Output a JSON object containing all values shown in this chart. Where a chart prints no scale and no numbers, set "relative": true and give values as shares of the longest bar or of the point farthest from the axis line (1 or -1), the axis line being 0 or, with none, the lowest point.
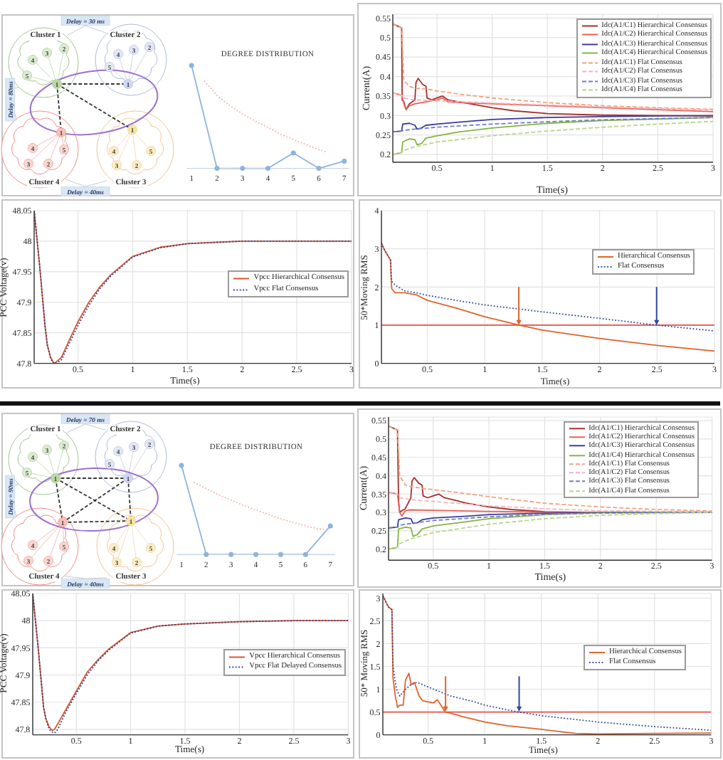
{
  "chart_data": [
    {
      "type": "other",
      "annotations": [
        "Cluster 1",
        "Cluster 2",
        "Cluster 3",
        "Cluster 4",
        "Delay = 30 ms",
        "Delay = 80ms",
        "Delay = 40ms",
        "1",
        "2",
        "3",
        "4",
        "5",
        "1",
        "2",
        "3",
        "4",
        "5",
        "1",
        "2",
        "3",
        "4",
        "5",
        "1",
        "2",
        "3",
        "4",
        "5"
      ]
    },
    {
      "type": "line",
      "title": "DEGREE DISTRIBUTION",
      "relative": true,
      "x": [
        1,
        2,
        3,
        4,
        5,
        6,
        7
      ],
      "xlim": [
        0.8,
        7.2
      ],
      "xticks": [
        1,
        2,
        3,
        4,
        5,
        6,
        7
      ],
      "marker": "circle",
      "series": [
        {
          "color": "#8db3de",
          "values": [
            1,
            0,
            0,
            0,
            0.15,
            0,
            0.07
          ]
        },
        {
          "x": [
            1.5,
            2,
            2.5,
            3,
            3.5,
            4,
            4.5,
            5,
            5.5,
            6,
            6.3
          ],
          "values": [
            0.85,
            0.71,
            0.61,
            0.53,
            0.46,
            0.4,
            0.33,
            0.28,
            0.23,
            0.18,
            0.16
          ],
          "color": "#f3b5ae",
          "line_style": "dotted",
          "marker": "none"
        }
      ]
    },
    {
      "type": "line",
      "xlabel": "Time(s)",
      "ylabel": "Current(A)",
      "xlim": [
        0.1,
        3
      ],
      "xticks": [
        0.5,
        1,
        1.5,
        2,
        2.5,
        3
      ],
      "ylim": [
        0.18,
        0.56
      ],
      "yticks": [
        0.2,
        0.25,
        0.3,
        0.35,
        0.4,
        0.45,
        0.5,
        0.55
      ],
      "grid": true,
      "legend": "top right",
      "line_style": "solid",
      "series": [
        {
          "name": "Idc(A1/C1) Hierarchical Consensus",
          "color": "#a5302b",
          "x": [
            0.1,
            0.18,
            0.185,
            0.2,
            0.22,
            0.25,
            0.3,
            0.31,
            0.33,
            0.37,
            0.4,
            0.41,
            0.45,
            0.5,
            0.55,
            0.6,
            0.7,
            0.8,
            1,
            1.2,
            1.5,
            2,
            2.5,
            3
          ],
          "values": [
            0.535,
            0.525,
            0.34,
            0.335,
            0.315,
            0.33,
            0.34,
            0.385,
            0.395,
            0.38,
            0.375,
            0.345,
            0.34,
            0.345,
            0.35,
            0.34,
            0.335,
            0.33,
            0.32,
            0.312,
            0.305,
            0.301,
            0.3,
            0.299
          ]
        },
        {
          "name": "Idc(A1/C2) Hierarchical Consensus",
          "color": "#ee5f58",
          "x": [
            0.1,
            0.18,
            0.2,
            0.22,
            0.25,
            0.3,
            0.4,
            0.5,
            0.55,
            0.6,
            0.8,
            1,
            1.5,
            2,
            2.5,
            3
          ],
          "values": [
            0.358,
            0.352,
            0.33,
            0.315,
            0.325,
            0.33,
            0.335,
            0.34,
            0.345,
            0.335,
            0.332,
            0.33,
            0.325,
            0.32,
            0.315,
            0.31
          ]
        },
        {
          "name": "Idc(A1/C3) Hierarchical Consensus",
          "color": "#3b3b9e",
          "x": [
            0.1,
            0.18,
            0.19,
            0.25,
            0.3,
            0.32,
            0.36,
            0.4,
            0.5,
            0.7,
            1,
            1.5,
            2,
            2.5,
            3
          ],
          "values": [
            0.258,
            0.26,
            0.278,
            0.28,
            0.275,
            0.265,
            0.268,
            0.275,
            0.278,
            0.283,
            0.29,
            0.295,
            0.297,
            0.299,
            0.3
          ]
        },
        {
          "name": "Idc(A1/C4) Hierarchical Consensus",
          "color": "#86b443",
          "x": [
            0.1,
            0.18,
            0.19,
            0.25,
            0.3,
            0.32,
            0.36,
            0.4,
            0.5,
            0.7,
            1,
            1.5,
            2,
            2.5,
            3
          ],
          "values": [
            0.2,
            0.205,
            0.232,
            0.24,
            0.238,
            0.225,
            0.228,
            0.242,
            0.248,
            0.258,
            0.268,
            0.28,
            0.287,
            0.291,
            0.295
          ]
        },
        {
          "name": "Idc(A1/C1) Flat Consensus",
          "color": "#f2a27e",
          "line_style": "dashed",
          "x": [
            0.1,
            0.18,
            0.2,
            0.25,
            0.3,
            0.4,
            0.5,
            0.7,
            1,
            1.5,
            2,
            2.5,
            3
          ],
          "values": [
            0.535,
            0.525,
            0.39,
            0.375,
            0.37,
            0.368,
            0.363,
            0.355,
            0.345,
            0.333,
            0.325,
            0.32,
            0.316
          ]
        },
        {
          "name": "Idc(A1/C2) Flat Consensus",
          "color": "#f6b3c0",
          "line_style": "dashed",
          "x": [
            0.1,
            0.18,
            0.2,
            0.3,
            0.5,
            1,
            1.5,
            2,
            2.5,
            3
          ],
          "values": [
            0.358,
            0.352,
            0.345,
            0.34,
            0.338,
            0.332,
            0.327,
            0.322,
            0.318,
            0.314
          ]
        },
        {
          "name": "Idc(A1/C3) Flat Consensus",
          "color": "#6f7fc4",
          "line_style": "dashed",
          "x": [
            0.1,
            0.18,
            0.2,
            0.3,
            0.5,
            1,
            1.5,
            2,
            2.5,
            3
          ],
          "values": [
            0.258,
            0.26,
            0.262,
            0.265,
            0.27,
            0.278,
            0.284,
            0.289,
            0.292,
            0.295
          ]
        },
        {
          "name": "Idc(A1/C4) Flat Consensus",
          "color": "#b5d68c",
          "line_style": "dashed",
          "x": [
            0.1,
            0.18,
            0.2,
            0.3,
            0.5,
            1,
            1.5,
            2,
            2.5,
            3
          ],
          "values": [
            0.2,
            0.205,
            0.21,
            0.22,
            0.232,
            0.248,
            0.26,
            0.27,
            0.278,
            0.285
          ]
        }
      ]
    },
    {
      "type": "line",
      "xlabel": "Time(s)",
      "ylabel": "PCC Voltage(v)",
      "xlim": [
        0.1,
        3
      ],
      "xticks": [
        0.5,
        1,
        1.5,
        2,
        2.5,
        3
      ],
      "ylim": [
        47.8,
        48.05
      ],
      "yticks": [
        47.8,
        47.85,
        47.9,
        47.95,
        48,
        48.05
      ],
      "grid": true,
      "legend": "right",
      "line_style": "solid",
      "series": [
        {
          "name": "Vpcc Hierarchical Consensus",
          "color": "#d8572f",
          "x": [
            0.1,
            0.15,
            0.2,
            0.22,
            0.25,
            0.28,
            0.3,
            0.35,
            0.4,
            0.5,
            0.6,
            0.7,
            0.8,
            1,
            1.25,
            1.5,
            2,
            2.5,
            3
          ],
          "values": [
            48.05,
            47.96,
            47.86,
            47.83,
            47.81,
            47.8,
            47.802,
            47.81,
            47.83,
            47.868,
            47.9,
            47.925,
            47.945,
            47.975,
            47.99,
            47.996,
            48,
            48,
            48
          ]
        },
        {
          "name": "Vpcc Flat Consensus",
          "color": "#2b3b8f",
          "line_style": "dotted",
          "x": [
            0.1,
            0.15,
            0.2,
            0.22,
            0.25,
            0.28,
            0.3,
            0.35,
            0.4,
            0.5,
            0.6,
            0.7,
            0.8,
            1,
            1.25,
            1.5,
            2,
            2.5,
            3
          ],
          "values": [
            48.05,
            47.96,
            47.86,
            47.83,
            47.808,
            47.8,
            47.8,
            47.806,
            47.825,
            47.862,
            47.895,
            47.922,
            47.943,
            47.974,
            47.989,
            47.996,
            48,
            48,
            48
          ]
        }
      ]
    },
    {
      "type": "line",
      "xlabel": "Time(s)",
      "ylabel": "50*Moving RMS",
      "xlim": [
        0.1,
        3
      ],
      "xticks": [
        0.5,
        1,
        1.5,
        2,
        2.5,
        3
      ],
      "ylim": [
        0,
        4
      ],
      "yticks": [
        0,
        1,
        2,
        3,
        4
      ],
      "grid": true,
      "legend": "top right",
      "line_style": "solid",
      "ref_lines": [
        {
          "axis": "y",
          "value": 1,
          "color": "#e8504a"
        }
      ],
      "series": [
        {
          "name": "Hierarchical Consensus",
          "color": "#e0632c",
          "x": [
            0.1,
            0.13,
            0.18,
            0.185,
            0.19,
            0.22,
            0.3,
            0.4,
            0.5,
            0.75,
            1,
            1.3,
            1.5,
            2,
            2.5,
            3
          ],
          "values": [
            3.15,
            2.95,
            2.7,
            2.2,
            1.95,
            1.85,
            1.85,
            1.8,
            1.65,
            1.45,
            1.22,
            1,
            0.87,
            0.65,
            0.47,
            0.32
          ]
        },
        {
          "name": "Flat Consensus",
          "color": "#2d4aa0",
          "line_style": "dotted",
          "x": [
            0.1,
            0.13,
            0.18,
            0.185,
            0.19,
            0.22,
            0.3,
            0.4,
            0.5,
            0.75,
            1,
            1.5,
            2,
            2.5,
            3
          ],
          "values": [
            3.15,
            2.95,
            2.7,
            2.3,
            2.15,
            2.05,
            1.9,
            1.85,
            1.78,
            1.65,
            1.53,
            1.35,
            1.18,
            1,
            0.85
          ]
        }
      ]
    },
    {
      "type": "other",
      "annotations": [
        "Cluster 1",
        "Cluster 2",
        "Cluster 3",
        "Cluster 4",
        "Delay = 70 ms",
        "Delay = 90ms",
        "Delay = 40ms",
        "1",
        "2",
        "3",
        "4",
        "5",
        "1",
        "2",
        "3",
        "4",
        "5",
        "1",
        "2",
        "3",
        "4",
        "5",
        "1",
        "2",
        "3",
        "4",
        "5"
      ]
    },
    {
      "type": "line",
      "title": "DEGREE DISTRIBUTION",
      "relative": true,
      "x": [
        1,
        2,
        3,
        4,
        5,
        6,
        7
      ],
      "xlim": [
        0.8,
        7.2
      ],
      "xticks": [
        1,
        2,
        3,
        4,
        5,
        6,
        7
      ],
      "marker": "circle",
      "series": [
        {
          "color": "#8db3de",
          "values": [
            1,
            0,
            0,
            0,
            0,
            0,
            0.32
          ]
        },
        {
          "x": [
            1.5,
            2,
            2.5,
            3,
            3.5,
            4,
            4.5,
            5,
            5.5,
            6,
            6.5,
            6.9
          ],
          "values": [
            0.81,
            0.74,
            0.67,
            0.61,
            0.55,
            0.5,
            0.45,
            0.4,
            0.36,
            0.32,
            0.29,
            0.28
          ],
          "color": "#f3b5ae",
          "line_style": "dotted",
          "marker": "none"
        }
      ]
    },
    {
      "type": "line",
      "xlabel": "Time(s)",
      "ylabel": "Current(A)",
      "xlim": [
        0.1,
        3
      ],
      "xticks": [
        0.5,
        1,
        1.5,
        2,
        2.5,
        3
      ],
      "ylim": [
        0.17,
        0.56
      ],
      "yticks": [
        0.2,
        0.25,
        0.3,
        0.35,
        0.4,
        0.45,
        0.5,
        0.55
      ],
      "grid": true,
      "legend": "top right",
      "line_style": "solid",
      "series": [
        {
          "name": "Idc(A1/C1) Hierarchical Consensus",
          "color": "#a5302b",
          "x": [
            0.1,
            0.18,
            0.19,
            0.2,
            0.22,
            0.25,
            0.3,
            0.31,
            0.33,
            0.37,
            0.4,
            0.41,
            0.45,
            0.5,
            0.55,
            0.6,
            0.7,
            0.8,
            1,
            1.2,
            1.5,
            2,
            2.5,
            3
          ],
          "values": [
            0.535,
            0.525,
            0.33,
            0.3,
            0.305,
            0.31,
            0.34,
            0.385,
            0.395,
            0.38,
            0.375,
            0.345,
            0.34,
            0.345,
            0.35,
            0.34,
            0.333,
            0.325,
            0.315,
            0.308,
            0.302,
            0.3,
            0.3,
            0.3
          ]
        },
        {
          "name": "Idc(A1/C2) Hierarchical Consensus",
          "color": "#ee5f58",
          "x": [
            0.1,
            0.18,
            0.2,
            0.22,
            0.25,
            0.3,
            0.5,
            1,
            1.5,
            2,
            3
          ],
          "values": [
            0.355,
            0.35,
            0.3,
            0.29,
            0.305,
            0.307,
            0.306,
            0.303,
            0.301,
            0.3,
            0.3
          ]
        },
        {
          "name": "Idc(A1/C3) Hierarchical Consensus",
          "color": "#3b3b9e",
          "x": [
            0.1,
            0.18,
            0.19,
            0.25,
            0.3,
            0.32,
            0.36,
            0.4,
            0.5,
            0.8,
            1,
            1.5,
            2,
            3
          ],
          "values": [
            0.258,
            0.26,
            0.28,
            0.285,
            0.283,
            0.27,
            0.272,
            0.28,
            0.285,
            0.29,
            0.294,
            0.298,
            0.3,
            0.3
          ]
        },
        {
          "name": "Idc(A1/C4) Hierarchical Consensus",
          "color": "#86b443",
          "x": [
            0.1,
            0.18,
            0.19,
            0.25,
            0.3,
            0.32,
            0.36,
            0.4,
            0.5,
            0.8,
            1,
            1.5,
            2,
            3
          ],
          "values": [
            0.2,
            0.205,
            0.255,
            0.26,
            0.258,
            0.235,
            0.24,
            0.255,
            0.263,
            0.275,
            0.283,
            0.294,
            0.299,
            0.3
          ]
        },
        {
          "name": "Idc(A1/C1) Flat Consensus",
          "color": "#f2a27e",
          "line_style": "dashed",
          "x": [
            0.1,
            0.18,
            0.2,
            0.25,
            0.3,
            0.5,
            0.7,
            1,
            1.5,
            2,
            2.5,
            3
          ],
          "values": [
            0.535,
            0.525,
            0.4,
            0.375,
            0.37,
            0.362,
            0.355,
            0.343,
            0.325,
            0.315,
            0.308,
            0.304
          ]
        },
        {
          "name": "Idc(A1/C2) Flat Consensus",
          "color": "#f6b3c0",
          "line_style": "dashed",
          "x": [
            0.1,
            0.18,
            0.2,
            0.3,
            0.5,
            1,
            1.5,
            2,
            2.5,
            3
          ],
          "values": [
            0.355,
            0.35,
            0.34,
            0.335,
            0.33,
            0.318,
            0.31,
            0.305,
            0.303,
            0.302
          ]
        },
        {
          "name": "Idc(A1/C3) Flat Consensus",
          "color": "#6f7fc4",
          "line_style": "dashed",
          "x": [
            0.1,
            0.18,
            0.2,
            0.3,
            0.5,
            1,
            1.5,
            2,
            2.5,
            3
          ],
          "values": [
            0.258,
            0.26,
            0.265,
            0.27,
            0.278,
            0.288,
            0.295,
            0.298,
            0.3,
            0.3
          ]
        },
        {
          "name": "Idc(A1/C4) Flat Consensus",
          "color": "#b5d68c",
          "line_style": "dashed",
          "x": [
            0.1,
            0.18,
            0.2,
            0.3,
            0.5,
            1,
            1.5,
            2,
            2.5,
            3
          ],
          "values": [
            0.2,
            0.205,
            0.215,
            0.228,
            0.245,
            0.268,
            0.283,
            0.292,
            0.297,
            0.3
          ]
        }
      ]
    },
    {
      "type": "line",
      "xlabel": "Time(s)",
      "ylabel": "PCC Voltage(v)",
      "xlim": [
        0.1,
        3
      ],
      "xticks": [
        0.5,
        1,
        1.5,
        2,
        2.5,
        3
      ],
      "ylim": [
        47.79,
        48.05
      ],
      "yticks": [
        47.8,
        47.85,
        47.9,
        47.95,
        48,
        48.05
      ],
      "grid": true,
      "legend": "right",
      "line_style": "solid",
      "series": [
        {
          "name": "Vpcc Hierarchical Consensus",
          "color": "#d8572f",
          "x": [
            0.1,
            0.15,
            0.2,
            0.22,
            0.25,
            0.28,
            0.3,
            0.33,
            0.4,
            0.5,
            0.6,
            0.7,
            0.8,
            1,
            1.25,
            1.5,
            2,
            2.5,
            3
          ],
          "values": [
            48.05,
            47.95,
            47.84,
            47.82,
            47.805,
            47.798,
            47.8,
            47.81,
            47.835,
            47.87,
            47.905,
            47.928,
            47.948,
            47.978,
            47.99,
            47.994,
            47.998,
            48,
            48
          ]
        },
        {
          "name": "Vpcc Flat Delayed Consensus",
          "color": "#2b3b8f",
          "line_style": "dotted",
          "x": [
            0.1,
            0.15,
            0.2,
            0.22,
            0.25,
            0.28,
            0.3,
            0.33,
            0.4,
            0.5,
            0.6,
            0.7,
            0.8,
            1,
            1.25,
            1.5,
            2,
            2.5,
            3
          ],
          "values": [
            48.05,
            47.95,
            47.84,
            47.82,
            47.8,
            47.795,
            47.793,
            47.8,
            47.83,
            47.866,
            47.9,
            47.926,
            47.946,
            47.977,
            47.99,
            47.994,
            47.998,
            48,
            48
          ]
        }
      ]
    },
    {
      "type": "line",
      "xlabel": "Time(s)",
      "ylabel": "50* Moving RMS",
      "xlim": [
        0.1,
        3
      ],
      "xticks": [
        0.5,
        1,
        1.5,
        2,
        2.5,
        3
      ],
      "ylim": [
        0,
        3.1
      ],
      "yticks": [
        0,
        0.5,
        1,
        1.5,
        2,
        2.5,
        3
      ],
      "grid": true,
      "legend": "right",
      "line_style": "solid",
      "ref_lines": [
        {
          "axis": "y",
          "value": 0.5,
          "color": "#e8504a"
        }
      ],
      "series": [
        {
          "name": "Hierarchical Consensus",
          "color": "#e0632c",
          "x": [
            0.1,
            0.15,
            0.18,
            0.19,
            0.21,
            0.23,
            0.25,
            0.28,
            0.3,
            0.33,
            0.35,
            0.38,
            0.42,
            0.45,
            0.5,
            0.55,
            0.58,
            0.6,
            0.65,
            0.7,
            0.8,
            1,
            1.2,
            1.5,
            1.8,
            2,
            2.5,
            3
          ],
          "values": [
            3.05,
            2.8,
            2.75,
            1.25,
            0.85,
            0.6,
            0.65,
            0.65,
            1.2,
            1.35,
            1.1,
            1.15,
            0.85,
            0.75,
            0.72,
            0.7,
            0.77,
            0.7,
            0.5,
            0.47,
            0.4,
            0.28,
            0.2,
            0.12,
            0.03,
            0.02,
            0.03,
            0.04
          ]
        },
        {
          "name": "Flat Consensus",
          "color": "#2d4aa0",
          "line_style": "dotted",
          "x": [
            0.1,
            0.15,
            0.18,
            0.19,
            0.22,
            0.25,
            0.3,
            0.35,
            0.4,
            0.5,
            0.6,
            0.7,
            0.9,
            1,
            1.3,
            1.5,
            2,
            2.5,
            3
          ],
          "values": [
            3.05,
            2.8,
            2.75,
            1.5,
            1,
            0.85,
            1,
            1.1,
            1.15,
            1.05,
            0.95,
            0.85,
            0.73,
            0.65,
            0.5,
            0.42,
            0.28,
            0.18,
            0.1
          ]
        }
      ]
    }
  ]
}
